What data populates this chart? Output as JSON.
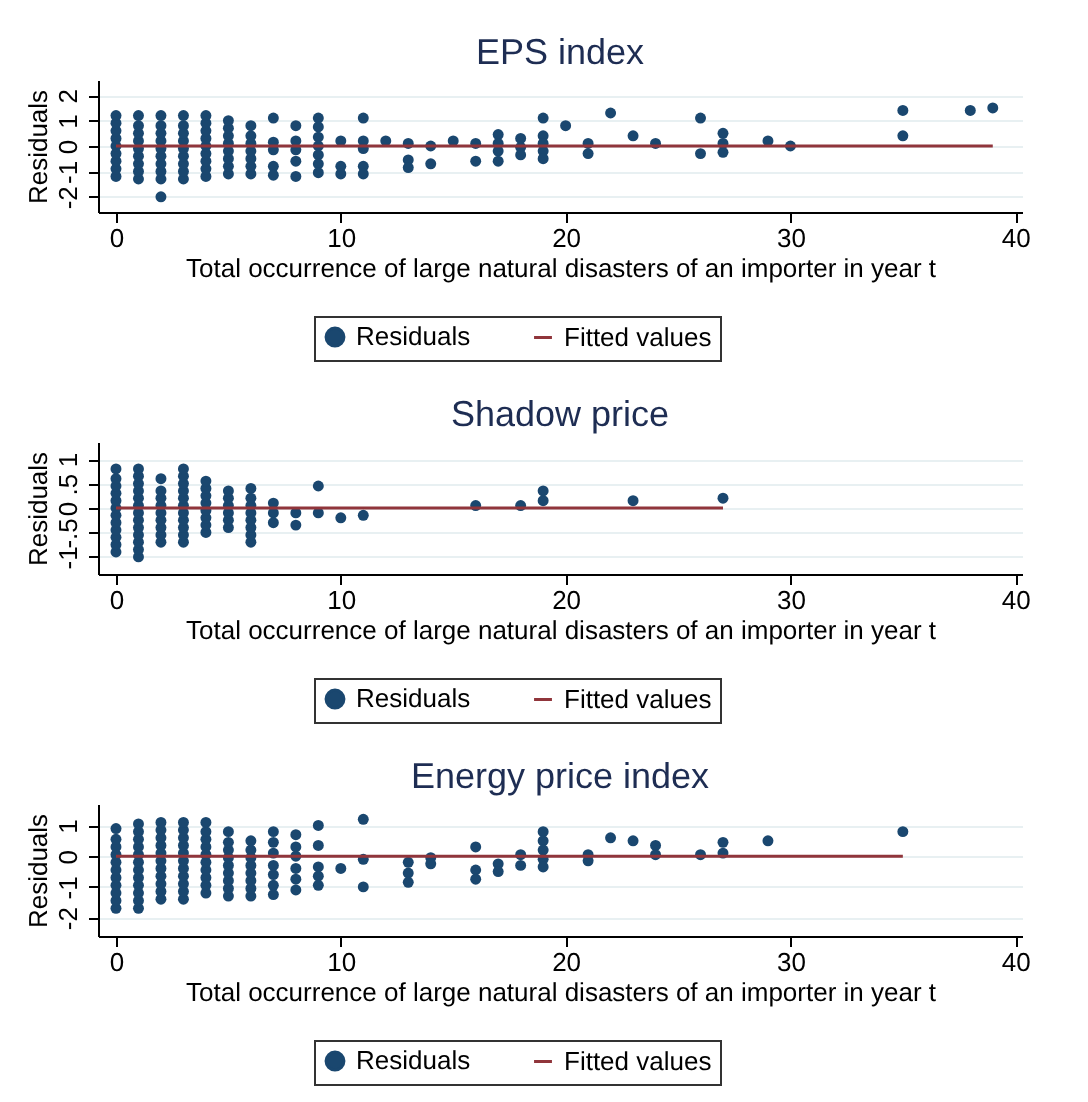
{
  "chart_data": [
    {
      "type": "scatter",
      "title": "EPS index",
      "xlabel": "Total occurrence of large natural disasters of an importer in year t",
      "ylabel": "Residuals",
      "xlim": [
        -0.8,
        40.3
      ],
      "xticks": [
        0,
        10,
        20,
        30,
        40
      ],
      "ylim": [
        -2.6,
        2.6
      ],
      "yticks": [
        -2,
        -1,
        0,
        1,
        2
      ],
      "grid": "y",
      "legend": "bottom",
      "series": [
        {
          "name": "Residuals",
          "color": "#1a476f",
          "marker": "circle",
          "x": [
            0,
            0,
            0,
            0,
            0,
            0,
            0,
            0,
            0,
            1,
            1,
            1,
            1,
            1,
            1,
            1,
            1,
            1,
            2,
            2,
            2,
            2,
            2,
            2,
            2,
            2,
            2,
            2,
            3,
            3,
            3,
            3,
            3,
            3,
            3,
            3,
            3,
            4,
            4,
            4,
            4,
            4,
            4,
            4,
            4,
            4,
            5,
            5,
            5,
            5,
            5,
            5,
            5,
            5,
            6,
            6,
            6,
            6,
            6,
            6,
            6,
            7,
            7,
            7,
            7,
            7,
            8,
            8,
            8,
            8,
            8,
            9,
            9,
            9,
            9,
            9,
            9,
            9,
            10,
            10,
            10,
            11,
            11,
            11,
            11,
            11,
            12,
            13,
            13,
            13,
            14,
            14,
            15,
            16,
            16,
            17,
            17,
            17,
            17,
            18,
            18,
            18,
            19,
            19,
            19,
            19,
            19,
            20,
            21,
            21,
            22,
            23,
            24,
            26,
            26,
            27,
            27,
            27,
            29,
            30,
            35,
            35,
            38,
            39
          ],
          "values": [
            -1.2,
            -0.9,
            -0.6,
            -0.3,
            0,
            0.3,
            0.6,
            0.9,
            1.2,
            -1.3,
            -1,
            -0.7,
            -0.4,
            -0.1,
            0.2,
            0.5,
            0.8,
            1.2,
            -2,
            -1.3,
            -1,
            -0.7,
            -0.4,
            -0.1,
            0.2,
            0.5,
            0.8,
            1.2,
            -1.3,
            -1,
            -0.7,
            -0.4,
            -0.1,
            0.2,
            0.5,
            0.8,
            1.2,
            -1.2,
            -0.9,
            -0.6,
            -0.3,
            0,
            0.3,
            0.6,
            0.9,
            1.2,
            -1.1,
            -0.8,
            -0.5,
            -0.2,
            0.1,
            0.4,
            0.7,
            1,
            -1.1,
            -0.8,
            -0.5,
            -0.2,
            0.1,
            0.4,
            0.8,
            1.1,
            0.15,
            -0.15,
            -0.8,
            -1.15,
            0.8,
            0.2,
            -0.15,
            -0.6,
            -1.2,
            1.1,
            0.75,
            0.35,
            0,
            -0.35,
            -0.7,
            -1.05,
            0.2,
            -0.8,
            -1.1,
            1.1,
            0.2,
            -0.1,
            -0.8,
            -1.1,
            0.2,
            0.1,
            -0.55,
            -0.85,
            0,
            -0.7,
            0.2,
            0.1,
            -0.6,
            0.45,
            0.1,
            -0.2,
            -0.6,
            0.3,
            -0.05,
            -0.35,
            1.1,
            0.4,
            0.1,
            -0.2,
            -0.5,
            0.8,
            0.1,
            -0.3,
            1.3,
            0.4,
            0.1,
            1.1,
            -0.3,
            0.5,
            0.1,
            -0.25,
            0.2,
            0,
            1.4,
            0.4,
            1.4,
            1.5
          ]
        },
        {
          "name": "Fitted values",
          "type": "line",
          "color": "#90353b",
          "x": [
            0,
            39
          ],
          "values": [
            0,
            0
          ]
        }
      ]
    },
    {
      "type": "scatter",
      "title": "Shadow price",
      "xlabel": "Total occurrence of large natural disasters of an importer in year t",
      "ylabel": "Residuals",
      "xlim": [
        -0.8,
        40.3
      ],
      "xticks": [
        0,
        10,
        20,
        30,
        40
      ],
      "ylim": [
        -1.35,
        1.35
      ],
      "yticks": [
        -1,
        {
          "value": -0.5,
          "label": "-.5"
        },
        0,
        {
          "value": 0.5,
          "label": ".5"
        },
        1
      ],
      "grid": "y",
      "legend": "bottom",
      "series": [
        {
          "name": "Residuals",
          "color": "#1a476f",
          "marker": "circle",
          "x": [
            0,
            0,
            0,
            0,
            0,
            0,
            0,
            0,
            0,
            0,
            0,
            0,
            1,
            1,
            1,
            1,
            1,
            1,
            1,
            1,
            1,
            1,
            1,
            1,
            1,
            2,
            2,
            2,
            2,
            2,
            2,
            2,
            2,
            2,
            3,
            3,
            3,
            3,
            3,
            3,
            3,
            3,
            3,
            3,
            3,
            4,
            4,
            4,
            4,
            4,
            4,
            4,
            4,
            5,
            5,
            5,
            5,
            5,
            5,
            6,
            6,
            6,
            6,
            6,
            6,
            6,
            6,
            7,
            7,
            7,
            8,
            8,
            9,
            9,
            10,
            11,
            16,
            18,
            19,
            19,
            23,
            27
          ],
          "values": [
            -0.9,
            -0.75,
            -0.6,
            -0.45,
            -0.3,
            -0.15,
            0,
            0.15,
            0.3,
            0.45,
            0.6,
            0.8,
            -1,
            -0.85,
            -0.7,
            -0.55,
            -0.4,
            -0.25,
            -0.1,
            0.05,
            0.2,
            0.35,
            0.5,
            0.65,
            0.8,
            -0.7,
            -0.55,
            -0.4,
            -0.25,
            -0.1,
            0.05,
            0.2,
            0.35,
            0.6,
            -0.7,
            -0.55,
            -0.4,
            -0.25,
            -0.1,
            0.05,
            0.2,
            0.35,
            0.5,
            0.65,
            0.8,
            -0.5,
            -0.35,
            -0.2,
            -0.05,
            0.1,
            0.25,
            0.4,
            0.55,
            -0.4,
            -0.25,
            -0.1,
            0.05,
            0.2,
            0.35,
            -0.7,
            -0.55,
            -0.4,
            -0.25,
            -0.1,
            0.05,
            0.2,
            0.4,
            0.1,
            -0.1,
            -0.3,
            -0.1,
            -0.35,
            0.45,
            -0.1,
            -0.2,
            -0.15,
            0.05,
            0.05,
            0.35,
            0.15,
            0.15,
            0.2
          ]
        },
        {
          "name": "Fitted values",
          "type": "line",
          "color": "#90353b",
          "x": [
            0,
            27
          ],
          "values": [
            0,
            0
          ]
        }
      ]
    },
    {
      "type": "scatter",
      "title": "Energy price index",
      "xlabel": "Total occurrence of large natural disasters of an importer in year t",
      "ylabel": "Residuals",
      "xlim": [
        -0.8,
        40.3
      ],
      "xticks": [
        0,
        10,
        20,
        30,
        40
      ],
      "ylim": [
        -2.6,
        1.7
      ],
      "yticks": [
        -2,
        -1,
        0,
        1
      ],
      "grid": "y",
      "legend": "bottom",
      "series": [
        {
          "name": "Residuals",
          "color": "#1a476f",
          "marker": "circle",
          "x": [
            0,
            0,
            0,
            0,
            0,
            0,
            0,
            0,
            0,
            0,
            0,
            1,
            1,
            1,
            1,
            1,
            1,
            1,
            1,
            1,
            1,
            1,
            1,
            2,
            2,
            2,
            2,
            2,
            2,
            2,
            2,
            2,
            2,
            2,
            3,
            3,
            3,
            3,
            3,
            3,
            3,
            3,
            3,
            3,
            3,
            4,
            4,
            4,
            4,
            4,
            4,
            4,
            4,
            4,
            4,
            5,
            5,
            5,
            5,
            5,
            5,
            5,
            5,
            5,
            6,
            6,
            6,
            6,
            6,
            6,
            6,
            6,
            7,
            7,
            7,
            7,
            7,
            7,
            7,
            8,
            8,
            8,
            8,
            8,
            8,
            9,
            9,
            9,
            9,
            9,
            10,
            11,
            11,
            11,
            13,
            13,
            13,
            14,
            14,
            16,
            16,
            16,
            17,
            17,
            18,
            18,
            19,
            19,
            19,
            19,
            19,
            21,
            21,
            22,
            23,
            24,
            24,
            26,
            27,
            27,
            29,
            35
          ],
          "values": [
            -1.7,
            -1.45,
            -1.2,
            -0.95,
            -0.7,
            -0.45,
            -0.2,
            0.05,
            0.3,
            0.55,
            0.9,
            -1.7,
            -1.45,
            -1.2,
            -0.95,
            -0.7,
            -0.45,
            -0.2,
            0.05,
            0.3,
            0.55,
            0.8,
            1.05,
            -1.4,
            -1.15,
            -0.9,
            -0.65,
            -0.4,
            -0.15,
            0.1,
            0.35,
            0.6,
            0.85,
            1.1,
            -1.4,
            -1.15,
            -0.9,
            -0.65,
            -0.4,
            -0.15,
            0.1,
            0.35,
            0.6,
            0.85,
            1.1,
            -1.2,
            -0.95,
            -0.7,
            -0.45,
            -0.2,
            0.05,
            0.3,
            0.55,
            0.8,
            1.1,
            -1.3,
            -1.05,
            -0.8,
            -0.55,
            -0.3,
            -0.05,
            0.2,
            0.45,
            0.8,
            -1.3,
            -1.05,
            -0.8,
            -0.55,
            -0.3,
            -0.05,
            0.2,
            0.5,
            0.8,
            0.45,
            0.1,
            -0.3,
            -0.6,
            -0.95,
            -1.25,
            0.7,
            0.3,
            0,
            -0.4,
            -0.75,
            -1.1,
            1,
            0.35,
            -0.35,
            -0.65,
            -0.95,
            -0.4,
            1.2,
            -0.1,
            -1,
            -0.2,
            -0.55,
            -0.85,
            -0.05,
            -0.25,
            0.3,
            -0.45,
            -0.75,
            -0.25,
            -0.5,
            0.05,
            -0.3,
            0.8,
            0.5,
            0.2,
            -0.1,
            -0.35,
            0.05,
            -0.15,
            0.6,
            0.5,
            0.35,
            0.05,
            0.05,
            0.45,
            0.1,
            0.5,
            0.8
          ]
        },
        {
          "name": "Fitted values",
          "type": "line",
          "color": "#90353b",
          "x": [
            0,
            35
          ],
          "values": [
            0,
            0
          ]
        }
      ]
    }
  ]
}
